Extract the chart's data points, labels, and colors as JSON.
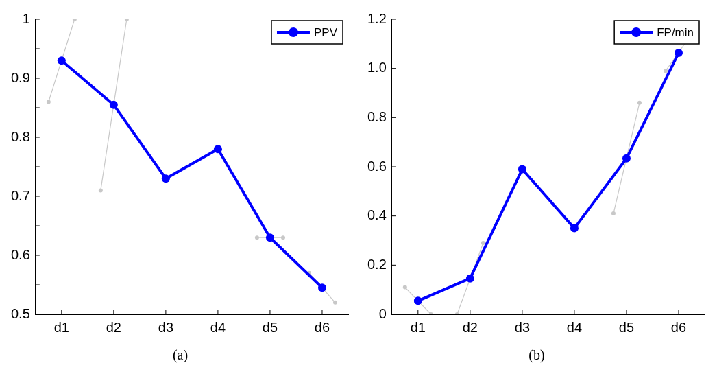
{
  "chart_data": [
    {
      "type": "line",
      "categories": [
        null,
        null,
        "d1",
        null,
        null,
        null,
        "d2",
        null,
        null,
        null,
        "d3",
        null,
        null,
        null,
        "d4",
        null,
        null,
        null,
        "d5",
        null,
        null,
        null,
        "d6",
        null,
        null
      ],
      "ylim": [
        0.5,
        1
      ],
      "yticks": [
        0.5,
        {
          "value": 0.55,
          "label": null
        },
        0.6,
        {
          "value": 0.65,
          "label": null
        },
        0.7,
        {
          "value": 0.75,
          "label": null
        },
        0.8,
        {
          "value": 0.85,
          "label": null
        },
        0.9,
        {
          "value": 0.95,
          "label": null
        },
        1
      ],
      "marker": "circle",
      "legend": "top right",
      "annotations": [
        "(a)"
      ],
      "series": [
        {
          "color": "#c8c8c8",
          "values": [
            null,
            0.86,
            null,
            1.0,
            null,
            null,
            null,
            null,
            null,
            null,
            null,
            null,
            null,
            null,
            null,
            null,
            null,
            null,
            null,
            null,
            null,
            null,
            null,
            null,
            null
          ]
        },
        {
          "color": "#c8c8c8",
          "values": [
            null,
            null,
            null,
            null,
            null,
            0.71,
            null,
            1.0,
            null,
            null,
            null,
            null,
            null,
            null,
            null,
            null,
            null,
            null,
            null,
            null,
            null,
            null,
            null,
            null,
            null
          ]
        },
        {
          "color": "#c8c8c8",
          "values": [
            null,
            null,
            null,
            null,
            null,
            null,
            null,
            null,
            null,
            null,
            null,
            null,
            null,
            null,
            null,
            null,
            null,
            0.63,
            null,
            0.63,
            null,
            null,
            null,
            null,
            null
          ]
        },
        {
          "color": "#c8c8c8",
          "values": [
            null,
            null,
            null,
            null,
            null,
            null,
            null,
            null,
            null,
            null,
            null,
            null,
            null,
            null,
            null,
            null,
            null,
            null,
            null,
            null,
            null,
            0.57,
            null,
            0.52,
            null
          ]
        },
        {
          "name": "PPV",
          "color": "#0000ff",
          "values": [
            null,
            null,
            0.93,
            null,
            null,
            null,
            0.855,
            null,
            null,
            null,
            0.73,
            null,
            null,
            null,
            0.78,
            null,
            null,
            null,
            0.63,
            null,
            null,
            null,
            0.545,
            null,
            null
          ]
        }
      ]
    },
    {
      "type": "line",
      "categories": [
        null,
        null,
        "d1",
        null,
        null,
        null,
        "d2",
        null,
        null,
        null,
        "d3",
        null,
        null,
        null,
        "d4",
        null,
        null,
        null,
        "d5",
        null,
        null,
        null,
        "d6",
        null,
        null
      ],
      "ylim": [
        0,
        1.2
      ],
      "yticks": [
        {
          "value": 0,
          "label": "0"
        },
        {
          "value": 0.2,
          "label": "0.2"
        },
        {
          "value": 0.4,
          "label": "0.4"
        },
        {
          "value": 0.6,
          "label": "0.6"
        },
        {
          "value": 0.8,
          "label": "0.8"
        },
        {
          "value": 1.0,
          "label": "1.0"
        },
        {
          "value": 1.2,
          "label": "1.2"
        }
      ],
      "marker": "circle",
      "legend": "top right",
      "annotations": [
        "(b)"
      ],
      "series": [
        {
          "color": "#c8c8c8",
          "values": [
            null,
            0.11,
            null,
            0,
            null,
            null,
            null,
            null,
            null,
            null,
            null,
            null,
            null,
            null,
            null,
            null,
            null,
            null,
            null,
            null,
            null,
            null,
            null,
            null,
            null
          ]
        },
        {
          "color": "#c8c8c8",
          "values": [
            null,
            null,
            null,
            null,
            null,
            0,
            null,
            0.29,
            null,
            null,
            null,
            null,
            null,
            null,
            null,
            null,
            null,
            null,
            null,
            null,
            null,
            null,
            null,
            null,
            null
          ]
        },
        {
          "color": "#c8c8c8",
          "values": [
            null,
            null,
            null,
            null,
            null,
            null,
            null,
            null,
            null,
            null,
            null,
            null,
            null,
            null,
            null,
            null,
            null,
            0.41,
            null,
            0.86,
            null,
            null,
            null,
            null,
            null
          ]
        },
        {
          "color": "#c8c8c8",
          "values": [
            null,
            null,
            null,
            null,
            null,
            null,
            null,
            null,
            null,
            null,
            null,
            null,
            null,
            null,
            null,
            null,
            null,
            null,
            null,
            null,
            null,
            0.99,
            null,
            1.14,
            null
          ]
        },
        {
          "name": "FP/min",
          "color": "#0000ff",
          "values": [
            null,
            null,
            0.055,
            null,
            null,
            null,
            0.146,
            null,
            null,
            null,
            0.59,
            null,
            null,
            null,
            0.35,
            null,
            null,
            null,
            0.634,
            null,
            null,
            null,
            1.063,
            null,
            null
          ]
        }
      ]
    }
  ]
}
